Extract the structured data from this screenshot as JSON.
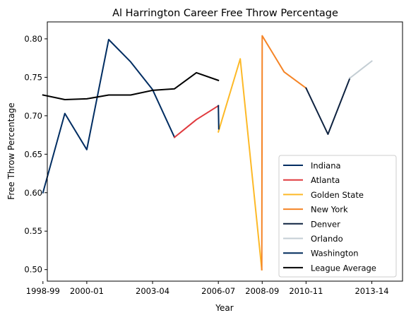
{
  "chart_data": {
    "type": "line",
    "title": "Al Harrington Career Free Throw Percentage",
    "xlabel": "Year",
    "ylabel": "Free Throw Percentage",
    "xlim": [
      1998.2,
      2014.4
    ],
    "ylim": [
      0.485,
      0.822
    ],
    "x_ticks": [
      {
        "value": 1998,
        "label": "1998-99"
      },
      {
        "value": 2000,
        "label": "2000-01"
      },
      {
        "value": 2003,
        "label": "2003-04"
      },
      {
        "value": 2006,
        "label": "2006-07"
      },
      {
        "value": 2008,
        "label": "2008-09"
      },
      {
        "value": 2010,
        "label": "2010-11"
      },
      {
        "value": 2013,
        "label": "2013-14"
      }
    ],
    "y_ticks": [
      {
        "value": 0.5,
        "label": "0.50"
      },
      {
        "value": 0.55,
        "label": "0.55"
      },
      {
        "value": 0.6,
        "label": "0.60"
      },
      {
        "value": 0.65,
        "label": "0.65"
      },
      {
        "value": 0.7,
        "label": "0.70"
      },
      {
        "value": 0.75,
        "label": "0.75"
      },
      {
        "value": 0.8,
        "label": "0.80"
      }
    ],
    "grid": false,
    "legend_position": "lower right",
    "series": [
      {
        "name": "Indiana",
        "color": "#002D62",
        "points": [
          [
            1998,
            0.6
          ],
          [
            1999,
            0.703
          ],
          [
            2000,
            0.656
          ],
          [
            2001,
            0.799
          ],
          [
            2002,
            0.77
          ],
          [
            2003,
            0.734
          ],
          [
            2004,
            0.672
          ]
        ]
      },
      {
        "name": "Atlanta",
        "color": "#E03A3E",
        "points": [
          [
            2004,
            0.672
          ],
          [
            2005,
            0.695
          ],
          [
            2006,
            0.713
          ]
        ]
      },
      {
        "name": "Golden State",
        "color": "#FDB927",
        "points": [
          [
            2006,
            0.679
          ],
          [
            2007,
            0.774
          ],
          [
            2007.98,
            0.5
          ]
        ]
      },
      {
        "name": "New York",
        "color": "#F58426",
        "points": [
          [
            2007.98,
            0.5
          ],
          [
            2008,
            0.804
          ],
          [
            2009,
            0.757
          ],
          [
            2010,
            0.736
          ]
        ]
      },
      {
        "name": "Denver",
        "color": "#0E2240",
        "points": [
          [
            2010,
            0.736
          ],
          [
            2011,
            0.676
          ],
          [
            2012,
            0.749
          ]
        ]
      },
      {
        "name": "Orlando",
        "color": "#C4CED4",
        "points": [
          [
            2012,
            0.749
          ],
          [
            2013,
            0.771
          ]
        ]
      },
      {
        "name": "Washington",
        "color": "#002B5C",
        "points": [
          [
            2006,
            0.713
          ],
          [
            2006.02,
            0.683
          ]
        ]
      },
      {
        "name": "League Average",
        "color": "#000000",
        "points": [
          [
            1998,
            0.727
          ],
          [
            1999,
            0.721
          ],
          [
            2000,
            0.722
          ],
          [
            2001,
            0.727
          ],
          [
            2002,
            0.727
          ],
          [
            2003,
            0.733
          ],
          [
            2004,
            0.735
          ],
          [
            2005,
            0.756
          ],
          [
            2006,
            0.746
          ]
        ]
      }
    ]
  }
}
